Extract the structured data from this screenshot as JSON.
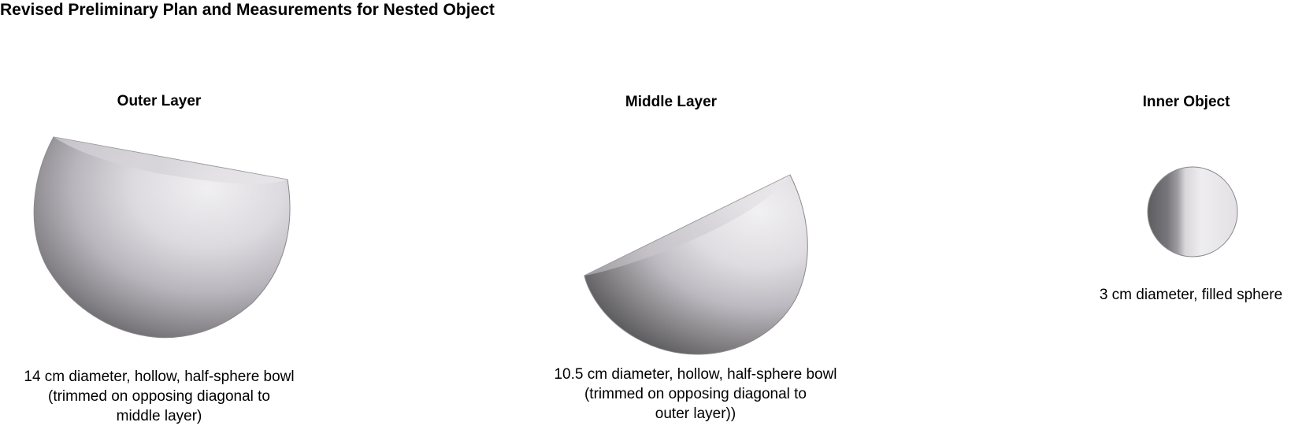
{
  "title": "Revised Preliminary Plan and Measurements for Nested Object",
  "panels": [
    {
      "title": "Outer Layer",
      "caption_lines": [
        "14 cm diameter, hollow, half-sphere bowl",
        "(trimmed on opposing diagonal to",
        "middle layer)"
      ],
      "shape": "trimmed-half-sphere-bowl"
    },
    {
      "title": "Middle Layer",
      "caption_lines": [
        "10.5 cm diameter, hollow, half-sphere bowl",
        "(trimmed on opposing diagonal to",
        "outer layer))"
      ],
      "shape": "trimmed-half-sphere-bowl"
    },
    {
      "title": "Inner Object",
      "caption_lines": [
        "3 cm diameter, filled sphere"
      ],
      "shape": "sphere"
    }
  ],
  "colors": {
    "shape_light": "#ecebed",
    "shape_mid": "#bdb9c0",
    "shape_dark": "#6c6b6e",
    "rim": "#8a888c"
  }
}
